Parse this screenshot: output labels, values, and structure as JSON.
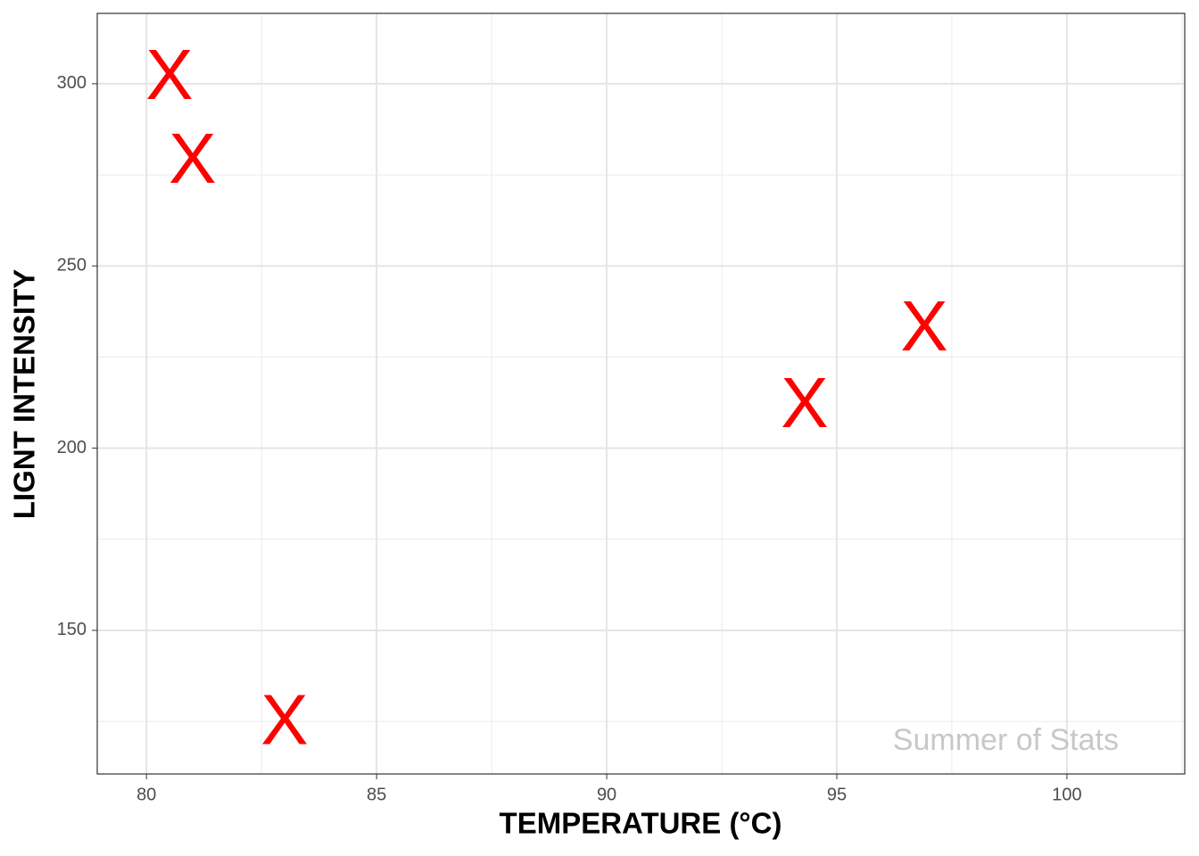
{
  "chart_data": {
    "type": "scatter",
    "x_label": "TEMPERATURE (°C)",
    "y_label": "LIGNT INTENSITY",
    "annotation": "Summer of Stats",
    "marker": "X",
    "color": "#ff0000",
    "x": [
      80.5,
      81,
      83,
      94.3,
      96.9
    ],
    "values": [
      301,
      278,
      124,
      211,
      232
    ],
    "xlim": [
      78.93,
      102.56
    ],
    "ylim": [
      110.6,
      319.3
    ],
    "xticks": [
      80,
      85,
      90,
      95,
      100
    ],
    "yticks": [
      150,
      200,
      250,
      300
    ],
    "grid": true
  }
}
